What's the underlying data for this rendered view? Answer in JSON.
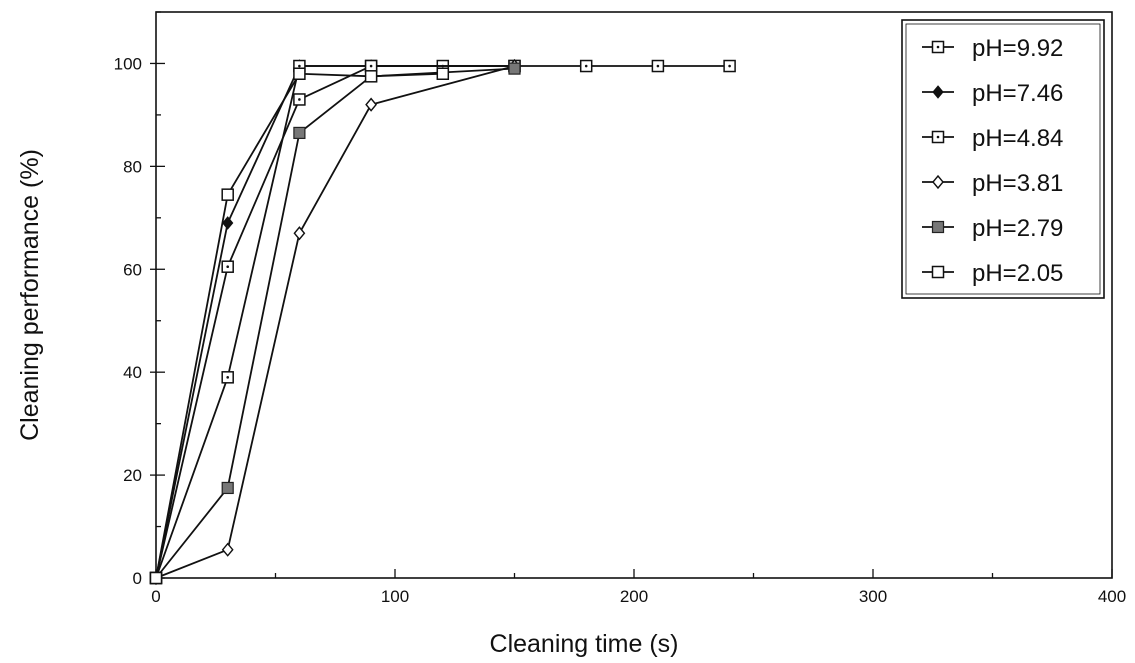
{
  "chart_data": {
    "type": "line",
    "title": "",
    "xlabel": "Cleaning time (s)",
    "ylabel": "Cleaning performance (%)",
    "xlim": [
      0,
      400
    ],
    "ylim": [
      0,
      110
    ],
    "xticks": [
      0,
      100,
      200,
      300,
      400
    ],
    "yticks": [
      0,
      20,
      40,
      60,
      80,
      100
    ],
    "grid": false,
    "legend_position": "top-right",
    "series": [
      {
        "name": "pH=9.92",
        "marker": "dotted-square",
        "x": [
          0,
          30,
          60,
          90,
          120,
          150,
          180,
          210,
          240
        ],
        "y": [
          0,
          60.5,
          93,
          99.5,
          99.5,
          99.5,
          99.5,
          99.5,
          99.5
        ]
      },
      {
        "name": "pH=7.46",
        "marker": "filled-diamond",
        "x": [
          0,
          30,
          60,
          90,
          150
        ],
        "y": [
          0,
          69,
          99.5,
          99.5,
          99.5
        ]
      },
      {
        "name": "pH=4.84",
        "marker": "dotted-square",
        "x": [
          0,
          30,
          60,
          90,
          150
        ],
        "y": [
          0,
          39,
          99.5,
          99.5,
          99.5
        ]
      },
      {
        "name": "pH=3.81",
        "marker": "open-diamond",
        "x": [
          0,
          30,
          60,
          90,
          150
        ],
        "y": [
          0,
          5.5,
          67,
          92,
          99.5
        ]
      },
      {
        "name": "pH=2.79",
        "marker": "shaded-square",
        "x": [
          0,
          30,
          60,
          90,
          150
        ],
        "y": [
          0,
          17.5,
          86.5,
          97.5,
          99
        ]
      },
      {
        "name": "pH=2.05",
        "marker": "open-square",
        "x": [
          0,
          30,
          60,
          90,
          120
        ],
        "y": [
          0,
          74.5,
          98,
          97.5,
          98
        ]
      }
    ]
  }
}
